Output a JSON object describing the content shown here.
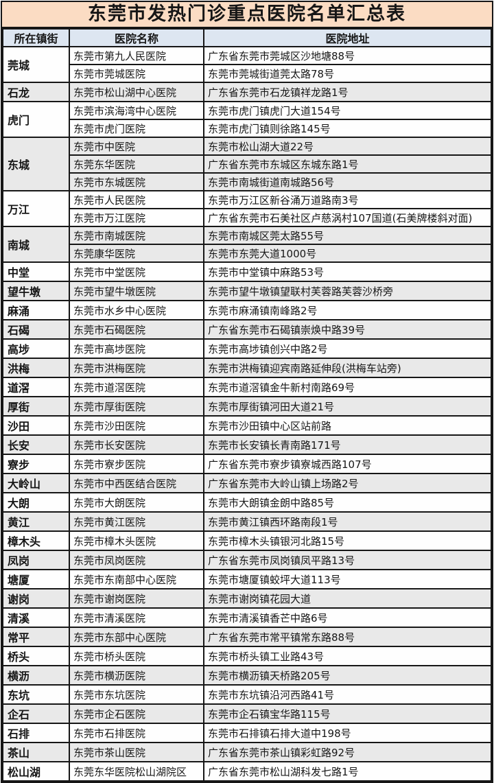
{
  "title": "东莞市发热门诊重点医院名单汇总表",
  "colors": {
    "title_bg": "#fbdcc3",
    "header_bg": "#dde6f1",
    "stripe_bg": "#e9e9e9",
    "row_bg": "#fefefe",
    "border": "#161616"
  },
  "table": {
    "headers": [
      "所在镇街",
      "医院名称",
      "医院地址"
    ],
    "groups": [
      {
        "town": "莞城",
        "rows": [
          {
            "name": "东莞市第九人民医院",
            "address": "广东省东莞市莞城区沙地塘88号"
          },
          {
            "name": "东莞市莞城医院",
            "address": "东莞市莞城街道莞太路78号"
          }
        ]
      },
      {
        "town": "石龙",
        "rows": [
          {
            "name": "东莞市松山湖中心医院",
            "address": "广东省东莞市石龙镇祥龙路1号"
          }
        ]
      },
      {
        "town": "虎门",
        "rows": [
          {
            "name": "东莞市滨海湾中心医院",
            "address": "东莞市虎门镇虎门大道154号"
          },
          {
            "name": "东莞市虎门医院",
            "address": "东莞市虎门镇则徐路145号"
          }
        ]
      },
      {
        "town": "东城",
        "rows": [
          {
            "name": "东莞市中医院",
            "address": "东莞市松山湖大道22号"
          },
          {
            "name": "东莞东华医院",
            "address": "广东省东莞市东城区东城东路1号"
          },
          {
            "name": "东莞市东城医院",
            "address": "东莞市南城街道南城路56号"
          }
        ]
      },
      {
        "town": "万江",
        "rows": [
          {
            "name": "东莞市人民医院",
            "address": "东莞市万江区新谷涌万道路南3号"
          },
          {
            "name": "东莞市万江医院",
            "address": "广东省东莞市石美社区卢慈涡村107国道(石美牌楼斜对面)"
          }
        ]
      },
      {
        "town": "南城",
        "rows": [
          {
            "name": "东莞市南城医院",
            "address": "东莞市南城区莞太路55号"
          },
          {
            "name": "东莞康华医院",
            "address": "东莞市东莞大道1000号"
          }
        ]
      },
      {
        "town": "中堂",
        "rows": [
          {
            "name": "东莞市中堂医院",
            "address": "东莞市中堂镇中麻路53号"
          }
        ]
      },
      {
        "town": "望牛墩",
        "rows": [
          {
            "name": "东莞市望牛墩医院",
            "address": "东莞市望牛墩镇望联村芙蓉路芙蓉沙桥旁"
          }
        ]
      },
      {
        "town": "麻涌",
        "rows": [
          {
            "name": "东莞市水乡中心医院",
            "address": "东莞市麻涌镇南峰路2号"
          }
        ]
      },
      {
        "town": "石碣",
        "rows": [
          {
            "name": "东莞市石碣医院",
            "address": "广东省东莞市石碣镇崇焕中路39号"
          }
        ]
      },
      {
        "town": "高埗",
        "rows": [
          {
            "name": "东莞市高埗医院",
            "address": "东莞市高埗镇创兴中路2号"
          }
        ]
      },
      {
        "town": "洪梅",
        "rows": [
          {
            "name": "东莞市洪梅医院",
            "address": "东莞市洪梅镇迎宾南路延伸段(洪梅车站旁)"
          }
        ]
      },
      {
        "town": "道滘",
        "rows": [
          {
            "name": "东莞市道滘医院",
            "address": "东莞市道滘镇金牛新村南路69号"
          }
        ]
      },
      {
        "town": "厚街",
        "rows": [
          {
            "name": "东莞市厚街医院",
            "address": "东莞市厚街镇河田大道21号"
          }
        ]
      },
      {
        "town": "沙田",
        "rows": [
          {
            "name": "东莞市沙田医院",
            "address": "东莞市沙田镇中心区站前路"
          }
        ]
      },
      {
        "town": "长安",
        "rows": [
          {
            "name": "东莞市长安医院",
            "address": "东莞市长安镇长青南路171号"
          }
        ]
      },
      {
        "town": "寮步",
        "rows": [
          {
            "name": "东莞市寮步医院",
            "address": "广东省东莞市寮步镇寮城西路107号"
          }
        ]
      },
      {
        "town": "大岭山",
        "rows": [
          {
            "name": "东莞市中西医结合医院",
            "address": "广东省东莞市大岭山镇上场路2号"
          }
        ]
      },
      {
        "town": "大朗",
        "rows": [
          {
            "name": "东莞市大朗医院",
            "address": "东莞市大朗镇金朗中路85号"
          }
        ]
      },
      {
        "town": "黄江",
        "rows": [
          {
            "name": "东莞市黄江医院",
            "address": "东莞市黄江镇西环路南段1号"
          }
        ]
      },
      {
        "town": "樟木头",
        "rows": [
          {
            "name": "东莞市樟木头医院",
            "address": "东莞市樟木头镇银河北路15号"
          }
        ]
      },
      {
        "town": "凤岗",
        "rows": [
          {
            "name": "东莞市凤岗医院",
            "address": "广东省东莞市凤岗镇凤平路13号"
          }
        ]
      },
      {
        "town": "塘厦",
        "rows": [
          {
            "name": "东莞市东南部中心医院",
            "address": "东莞市塘厦镇蛟坪大道113号"
          }
        ]
      },
      {
        "town": "谢岗",
        "rows": [
          {
            "name": "东莞市谢岗医院",
            "address": "东莞市谢岗镇花园大道"
          }
        ]
      },
      {
        "town": "清溪",
        "rows": [
          {
            "name": "东莞市清溪医院",
            "address": "东莞市清溪镇香芒中路6号"
          }
        ]
      },
      {
        "town": "常平",
        "rows": [
          {
            "name": "东莞市东部中心医院",
            "address": "广东省东莞市常平镇常东路88号"
          }
        ]
      },
      {
        "town": "桥头",
        "rows": [
          {
            "name": "东莞市桥头医院",
            "address": "东莞市桥头镇工业路43号"
          }
        ]
      },
      {
        "town": "横沥",
        "rows": [
          {
            "name": "东莞市横沥医院",
            "address": "东莞市横沥镇天桥路205号"
          }
        ]
      },
      {
        "town": "东坑",
        "rows": [
          {
            "name": "东莞市东坑医院",
            "address": "东莞市东坑镇沿河西路41号"
          }
        ]
      },
      {
        "town": "企石",
        "rows": [
          {
            "name": "东莞市企石医院",
            "address": "东莞市企石镇宝华路115号"
          }
        ]
      },
      {
        "town": "石排",
        "rows": [
          {
            "name": "东莞市石排医院",
            "address": "东莞市石排镇石排大道中198号"
          }
        ]
      },
      {
        "town": "茶山",
        "rows": [
          {
            "name": "东莞市茶山医院",
            "address": "广东省东莞市茶山镇彩虹路92号"
          }
        ]
      },
      {
        "town": "松山湖",
        "rows": [
          {
            "name": "东莞东华医院松山湖院区",
            "address": "广东省东莞市松山湖科发七路1号"
          }
        ]
      }
    ]
  }
}
